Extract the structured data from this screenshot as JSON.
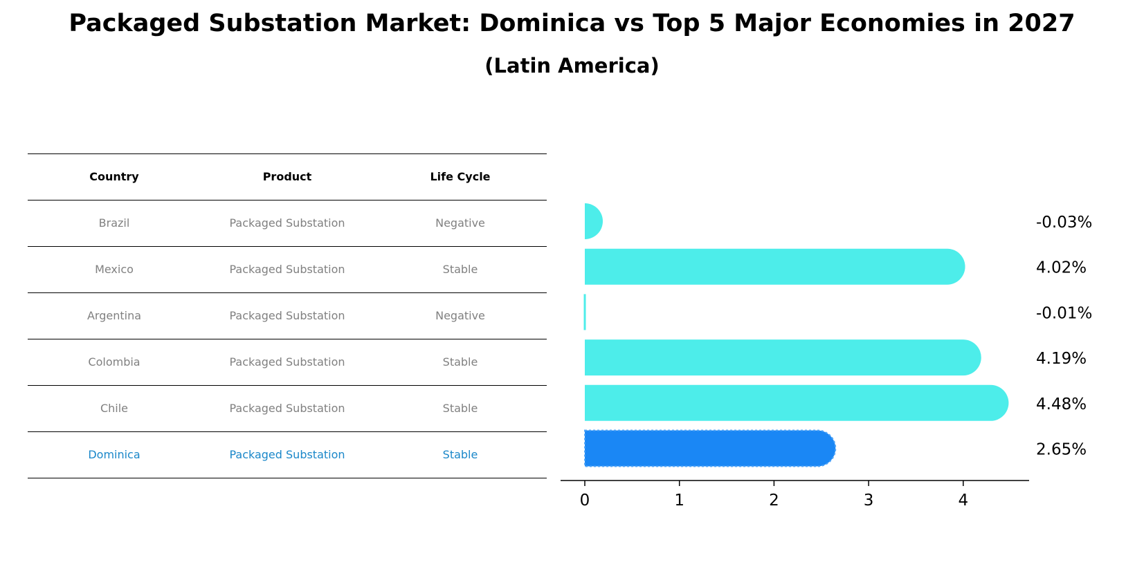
{
  "title": "Packaged Substation Market: Dominica vs Top 5 Major Economies in 2027",
  "subtitle": "(Latin America)",
  "table": {
    "headers": [
      "Country",
      "Product",
      "Life Cycle"
    ],
    "rows": [
      [
        "Brazil",
        "Packaged Substation",
        "Negative"
      ],
      [
        "Mexico",
        "Packaged Substation",
        "Stable"
      ],
      [
        "Argentina",
        "Packaged Substation",
        "Negative"
      ],
      [
        "Colombia",
        "Packaged Substation",
        "Stable"
      ],
      [
        "Chile",
        "Packaged Substation",
        "Stable"
      ],
      [
        "Dominica",
        "Packaged Substation",
        "Stable"
      ]
    ]
  },
  "chart_data": {
    "type": "bar",
    "orientation": "horizontal",
    "categories": [
      "Brazil",
      "Mexico",
      "Argentina",
      "Colombia",
      "Chile",
      "Dominica"
    ],
    "values": [
      -0.03,
      4.02,
      -0.01,
      4.19,
      4.48,
      2.65
    ],
    "value_labels": [
      "-0.03%",
      "4.02%",
      "-0.01%",
      "4.19%",
      "4.48%",
      "2.65%"
    ],
    "highlight": "Dominica",
    "xlim": [
      -0.25,
      4.7
    ],
    "xticks": [
      0,
      1,
      2,
      3,
      4
    ],
    "colors": {
      "default": "#4dedea",
      "highlight": "#1a87f5",
      "table_highlight_text": "#1a87c9",
      "table_text": "#808080"
    }
  }
}
